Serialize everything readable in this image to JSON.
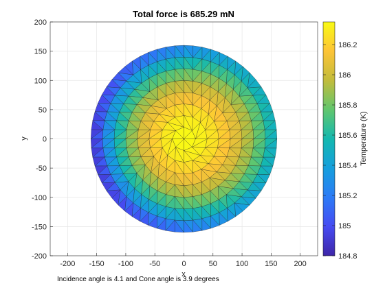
{
  "chart_data": {
    "type": "heatmap",
    "title": "Total force is 685.29 mN",
    "xlabel": "x",
    "ylabel": "y",
    "xlim": [
      -230,
      230
    ],
    "ylim": [
      -200,
      200
    ],
    "xticks": [
      -200,
      -150,
      -100,
      -50,
      0,
      50,
      100,
      150,
      200
    ],
    "yticks": [
      -200,
      -150,
      -100,
      -50,
      0,
      50,
      100,
      150,
      200
    ],
    "grid": true,
    "colormap": "parula",
    "colorbar": {
      "label": "Temperature (K)",
      "range": [
        184.8,
        186.35
      ],
      "ticks": [
        184.8,
        185,
        185.2,
        185.4,
        185.6,
        185.8,
        186,
        186.2
      ]
    },
    "mesh": {
      "shape": "disk",
      "radius": 160,
      "rings": 8,
      "center": [
        0,
        0
      ],
      "temp_center": 186.35,
      "temp_edge_max": 185.45,
      "temp_edge_min": 184.8,
      "hottest_edge_direction_deg": 10
    }
  },
  "footer_text": "Incidence angle is 4.1 and Cone angle is 3.9 degrees"
}
